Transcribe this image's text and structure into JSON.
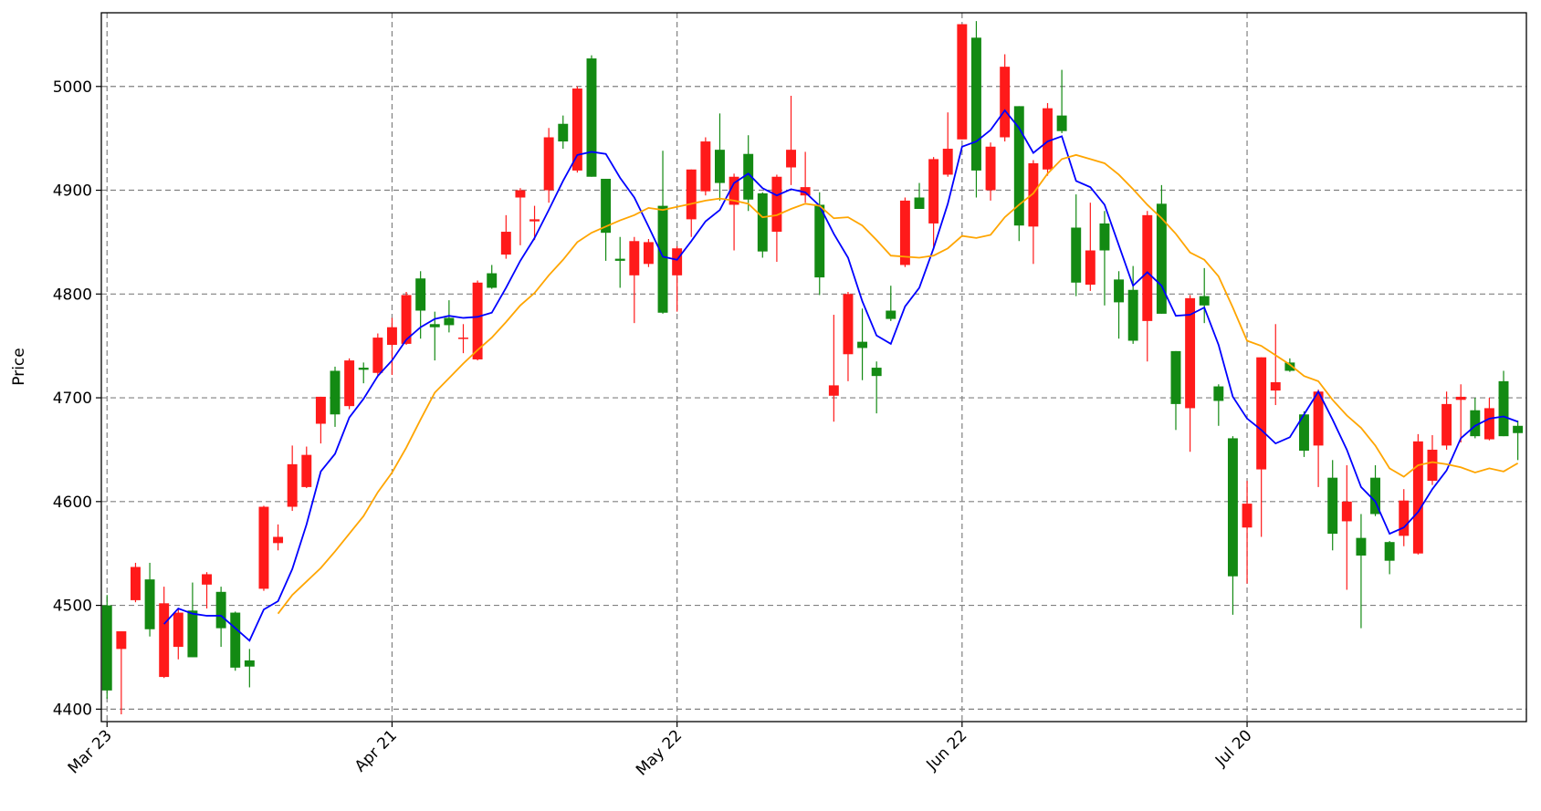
{
  "chart_data": {
    "type": "candlestick",
    "ylabel": "Price",
    "categories": [
      "Mar 23",
      null,
      null,
      null,
      null,
      null,
      null,
      null,
      null,
      null,
      null,
      null,
      null,
      null,
      null,
      null,
      null,
      null,
      null,
      null,
      "Apr 21",
      null,
      null,
      null,
      null,
      null,
      null,
      null,
      null,
      null,
      null,
      null,
      null,
      null,
      null,
      null,
      null,
      null,
      null,
      null,
      "May 22",
      null,
      null,
      null,
      null,
      null,
      null,
      null,
      null,
      null,
      null,
      null,
      null,
      null,
      null,
      null,
      null,
      null,
      null,
      null,
      "Jun 22",
      null,
      null,
      null,
      null,
      null,
      null,
      null,
      null,
      null,
      null,
      null,
      null,
      null,
      null,
      null,
      null,
      null,
      null,
      null,
      "Jul 20",
      null,
      null,
      null,
      null,
      null,
      null,
      null,
      null,
      null,
      null,
      null,
      null,
      null,
      null,
      null,
      null,
      null,
      null,
      null
    ],
    "open": [
      4500,
      4458,
      4505,
      4525,
      4431,
      4460,
      4495,
      4520,
      4513,
      4493,
      4447,
      4516,
      4560,
      4595,
      4614,
      4675,
      4726,
      4692,
      4729,
      4724,
      4751,
      4752,
      4815,
      4771,
      4777,
      4757,
      4737,
      4820,
      4838,
      4893,
      4870,
      4900,
      4964,
      4919,
      5027,
      4911,
      4834,
      4818,
      4829,
      4885,
      4818,
      4872,
      4899,
      4939,
      4886,
      4935,
      4897,
      4860,
      4922,
      4895,
      4886,
      4702,
      4742,
      4754,
      4729,
      4784,
      4828,
      4893,
      4868,
      4915,
      4949,
      5047,
      4900,
      4951,
      4981,
      4865,
      4920,
      4972,
      4864,
      4809,
      4868,
      4814,
      4804,
      4774,
      4887,
      4745,
      4690,
      4798,
      4711,
      4661,
      4575,
      4631,
      4707,
      4734,
      4684,
      4654,
      4623,
      4581,
      4565,
      4623,
      4561,
      4567,
      4550,
      4620,
      4654,
      4698,
      4688,
      4660,
      4716,
      4673
    ],
    "high": [
      4510,
      4475,
      4541,
      4541,
      4518,
      4497,
      4522,
      4532,
      4518,
      4494,
      4458,
      4596,
      4578,
      4654,
      4653,
      4701,
      4730,
      4738,
      4734,
      4762,
      4777,
      4802,
      4822,
      4783,
      4794,
      4771,
      4813,
      4828,
      4876,
      4902,
      4885,
      4960,
      4972,
      5000,
      5030,
      4911,
      4855,
      4855,
      4853,
      4938,
      4846,
      4920,
      4951,
      4974,
      4916,
      4953,
      4898,
      4915,
      4991,
      4937,
      4898,
      4780,
      4802,
      4786,
      4735,
      4808,
      4893,
      4907,
      4932,
      4975,
      5060,
      5063,
      4946,
      5031,
      4981,
      4929,
      4984,
      5016,
      4896,
      4888,
      4880,
      4822,
      4827,
      4880,
      4905,
      4745,
      4799,
      4825,
      4713,
      4663,
      4620,
      4739,
      4771,
      4738,
      4687,
      4708,
      4640,
      4635,
      4588,
      4635,
      4562,
      4612,
      4665,
      4664,
      4706,
      4713,
      4700,
      4700,
      4726,
      4678
    ],
    "low": [
      4410,
      4395,
      4503,
      4470,
      4430,
      4448,
      4450,
      4497,
      4460,
      4437,
      4421,
      4514,
      4553,
      4591,
      4613,
      4656,
      4672,
      4689,
      4714,
      4720,
      4722,
      4751,
      4757,
      4736,
      4763,
      4743,
      4736,
      4805,
      4834,
      4847,
      4852,
      4888,
      4940,
      4917,
      4913,
      4832,
      4806,
      4772,
      4826,
      4781,
      4783,
      4855,
      4895,
      4890,
      4842,
      4880,
      4835,
      4831,
      4905,
      4888,
      4799,
      4677,
      4716,
      4717,
      4685,
      4774,
      4826,
      4882,
      4843,
      4913,
      4949,
      4893,
      4890,
      4947,
      4851,
      4829,
      4914,
      4955,
      4798,
      4803,
      4789,
      4757,
      4752,
      4735,
      4781,
      4669,
      4648,
      4772,
      4673,
      4491,
      4521,
      4566,
      4693,
      4725,
      4643,
      4614,
      4553,
      4515,
      4478,
      4586,
      4530,
      4557,
      4549,
      4616,
      4650,
      4657,
      4661,
      4659,
      4663,
      4640
    ],
    "close": [
      4418,
      4475,
      4537,
      4477,
      4502,
      4493,
      4450,
      4530,
      4478,
      4440,
      4441,
      4595,
      4566,
      4636,
      4645,
      4701,
      4684,
      4736,
      4727,
      4758,
      4768,
      4799,
      4784,
      4768,
      4770,
      4758,
      4811,
      4806,
      4860,
      4900,
      4872,
      4951,
      4947,
      4998,
      4913,
      4859,
      4832,
      4851,
      4850,
      4782,
      4844,
      4920,
      4947,
      4907,
      4913,
      4891,
      4841,
      4913,
      4939,
      4903,
      4816,
      4712,
      4800,
      4748,
      4721,
      4776,
      4890,
      4882,
      4930,
      4940,
      5060,
      4919,
      4942,
      5019,
      4866,
      4926,
      4979,
      4957,
      4811,
      4842,
      4842,
      4792,
      4755,
      4876,
      4781,
      4694,
      4796,
      4789,
      4697,
      4528,
      4598,
      4739,
      4715,
      4726,
      4649,
      4706,
      4569,
      4600,
      4548,
      4588,
      4543,
      4601,
      4658,
      4650,
      4694,
      4701,
      4663,
      4690,
      4663,
      4666
    ],
    "up_color": "#ff1a1a",
    "down_color": "#138a13",
    "series": [
      {
        "color": "#0000ff",
        "values": [
          null,
          null,
          null,
          null,
          4482,
          4497,
          4492,
          4490,
          4490,
          4478,
          4466,
          4496,
          4504,
          4535,
          4578,
          4629,
          4646,
          4681,
          4699,
          4721,
          4736,
          4756,
          4768,
          4776,
          4779,
          4777,
          4778,
          4782,
          4806,
          4832,
          4854,
          4881,
          4909,
          4934,
          4937,
          4935,
          4912,
          4893,
          4865,
          4836,
          4833,
          4851,
          4870,
          4881,
          4907,
          4916,
          4902,
          4895,
          4901,
          4898,
          4885,
          4858,
          4835,
          4793,
          4760,
          4752,
          4788,
          4806,
          4844,
          4887,
          4942,
          4947,
          4958,
          4977,
          4960,
          4936,
          4947,
          4952,
          4909,
          4903,
          4886,
          4847,
          4808,
          4821,
          4808,
          4779,
          4780,
          4787,
          4751,
          4701,
          4680,
          4669,
          4656,
          4662,
          4684,
          4706,
          4679,
          4650,
          4614,
          4600,
          4569,
          4575,
          4590,
          4612,
          4630,
          4661,
          4673,
          4680,
          4682,
          4677
        ]
      },
      {
        "color": "#ffa500",
        "values": [
          null,
          null,
          null,
          null,
          null,
          null,
          null,
          null,
          null,
          null,
          null,
          null,
          4492,
          4510,
          4523,
          4536,
          4552,
          4569,
          4586,
          4609,
          4628,
          4652,
          4679,
          4705,
          4719,
          4733,
          4746,
          4758,
          4773,
          4789,
          4801,
          4818,
          4833,
          4850,
          4859,
          4865,
          4871,
          4876,
          4883,
          4881,
          4884,
          4887,
          4890,
          4892,
          4890,
          4887,
          4874,
          4876,
          4882,
          4887,
          4885,
          4873,
          4874,
          4866,
          4852,
          4837,
          4836,
          4835,
          4837,
          4844,
          4856,
          4854,
          4857,
          4874,
          4886,
          4897,
          4916,
          4930,
          4934,
          4930,
          4926,
          4915,
          4901,
          4886,
          4873,
          4858,
          4840,
          4833,
          4817,
          4787,
          4755,
          4750,
          4741,
          4732,
          4721,
          4716,
          4698,
          4683,
          4671,
          4654,
          4632,
          4624,
          4635,
          4638,
          4636,
          4633,
          4628,
          4632,
          4629,
          4637
        ]
      }
    ],
    "ylim": [
      4388,
      5071
    ],
    "yticks": [
      4400,
      4500,
      4600,
      4700,
      4800,
      4900,
      5000
    ],
    "xlim": [
      -0.4,
      99.6
    ],
    "grid": true
  }
}
